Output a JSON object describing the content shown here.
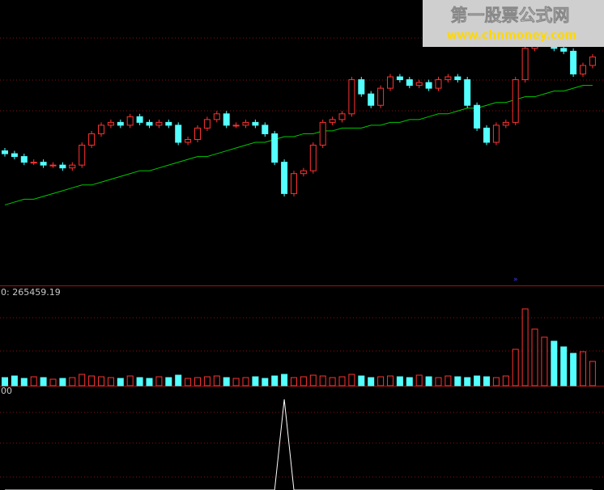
{
  "watermark": {
    "title": "第一股票公式网",
    "url": "www.chnmoney.com"
  },
  "chart_data": [
    {
      "type": "candlestick",
      "ylim": [
        0,
        100
      ],
      "up_color": "#ff3232",
      "down_color": "#54ffff",
      "open": [
        47,
        46,
        45,
        43,
        43,
        42,
        42,
        41,
        42,
        49,
        53,
        56,
        57,
        56,
        59,
        57,
        56,
        57,
        56,
        50,
        51,
        55,
        58,
        60,
        56,
        56,
        57,
        56,
        53,
        43,
        32,
        39,
        40,
        49,
        57,
        58,
        60,
        72,
        67,
        63,
        69,
        73,
        72,
        70,
        71,
        69,
        72,
        73,
        72,
        63,
        55,
        50,
        56,
        57,
        72,
        83,
        87,
        89,
        83,
        82,
        74,
        77
      ],
      "high": [
        48,
        47,
        46,
        44,
        44,
        43,
        43,
        43,
        50,
        54,
        57,
        58,
        58,
        60,
        60,
        58,
        58,
        58,
        57,
        52,
        56,
        59,
        61,
        61,
        57,
        58,
        58,
        57,
        54,
        44,
        40,
        41,
        50,
        58,
        59,
        61,
        73,
        73,
        68,
        70,
        74,
        74,
        73,
        72,
        72,
        73,
        74,
        74,
        73,
        64,
        56,
        57,
        58,
        73,
        84,
        88,
        90,
        90,
        84,
        83,
        78,
        81
      ],
      "low": [
        45,
        44,
        42,
        42,
        41,
        41,
        40,
        40,
        41,
        48,
        52,
        55,
        55,
        55,
        56,
        55,
        55,
        55,
        49,
        49,
        50,
        54,
        57,
        55,
        55,
        55,
        55,
        52,
        42,
        31,
        31,
        38,
        39,
        48,
        56,
        57,
        59,
        66,
        62,
        62,
        68,
        71,
        69,
        69,
        68,
        68,
        71,
        71,
        62,
        54,
        49,
        49,
        55,
        56,
        71,
        82,
        86,
        82,
        81,
        73,
        73,
        76
      ],
      "close": [
        46,
        45,
        43,
        43,
        42,
        42,
        41,
        42,
        49,
        53,
        56,
        57,
        56,
        59,
        57,
        56,
        57,
        56,
        50,
        51,
        55,
        58,
        60,
        56,
        56,
        57,
        56,
        53,
        43,
        32,
        39,
        40,
        49,
        57,
        58,
        60,
        72,
        67,
        63,
        69,
        73,
        72,
        70,
        71,
        69,
        72,
        73,
        72,
        63,
        55,
        50,
        56,
        57,
        72,
        83,
        87,
        89,
        83,
        82,
        74,
        77,
        80
      ],
      "ma": {
        "color": "#00c800",
        "values": [
          28,
          29,
          30,
          30,
          31,
          32,
          33,
          34,
          35,
          35,
          36,
          37,
          38,
          39,
          40,
          40,
          41,
          42,
          43,
          44,
          45,
          45,
          46,
          47,
          48,
          49,
          50,
          50,
          51,
          52,
          52,
          53,
          53,
          54,
          54,
          55,
          55,
          55,
          56,
          56,
          57,
          57,
          58,
          58,
          59,
          60,
          60,
          61,
          62,
          62,
          63,
          64,
          64,
          65,
          66,
          66,
          67,
          68,
          68,
          69,
          70,
          70
        ]
      }
    },
    {
      "type": "bar",
      "label": "0: 265459.19",
      "ylim": [
        0,
        124
      ],
      "values": [
        10,
        12,
        9,
        11,
        10,
        8,
        9,
        10,
        14,
        12,
        11,
        10,
        9,
        12,
        10,
        9,
        11,
        10,
        13,
        9,
        10,
        11,
        12,
        10,
        9,
        10,
        11,
        9,
        12,
        14,
        10,
        11,
        13,
        12,
        10,
        11,
        14,
        12,
        10,
        11,
        12,
        11,
        10,
        13,
        11,
        10,
        12,
        11,
        10,
        12,
        11,
        10,
        12,
        45,
        95,
        70,
        60,
        55,
        48,
        40,
        42,
        30
      ]
    },
    {
      "type": "line",
      "label": "00",
      "color": "#ffffff",
      "ylim": [
        0,
        1.15
      ],
      "values": [
        0,
        0,
        0,
        0,
        0,
        0,
        0,
        0,
        0,
        0,
        0,
        0,
        0,
        0,
        0,
        0,
        0,
        0,
        0,
        0,
        0,
        0,
        0,
        0,
        0,
        0,
        0,
        0,
        0,
        1,
        0,
        0,
        0,
        0,
        0,
        0,
        0,
        0,
        0,
        0,
        0,
        0,
        0,
        0,
        0,
        0,
        0,
        0,
        0,
        0,
        0,
        0,
        0,
        0,
        0,
        0,
        0,
        0,
        0,
        0,
        0,
        0
      ]
    }
  ]
}
